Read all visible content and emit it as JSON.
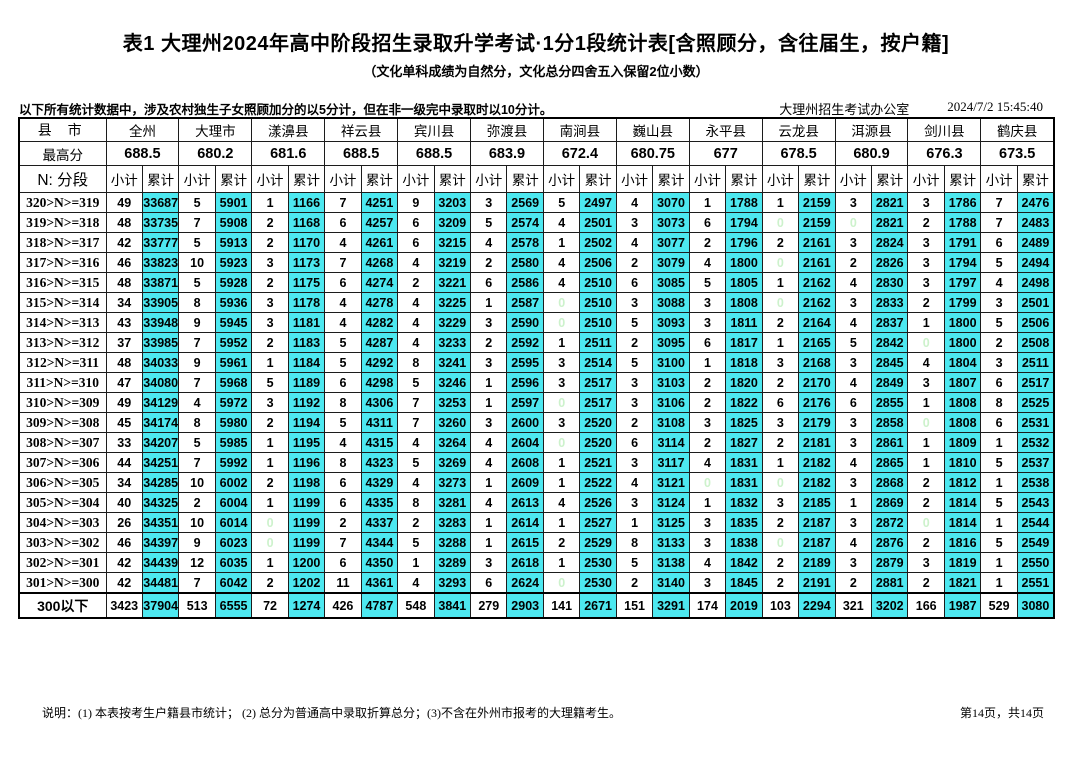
{
  "title": "表1  大理州2024年高中阶段招生录取升学考试·1分1段统计表[含照顾分，含往届生，按户籍]",
  "subtitle": "（文化单科成绩为自然分，文化总分四舍五入保留2位小数）",
  "note": "以下所有统计数据中，涉及农村独生子女照顾加分的以5分计，但在非一级完中录取时以10分计。",
  "office": "大理州招生考试办公室",
  "datetime": "2024/7/2 15:45:40",
  "footer_left": "说明：(1) 本表按考生户籍县市统计；  (2) 总分为普通高中录取折算总分；(3)不含在外州市报考的大理籍考生。",
  "footer_right": "第14页，共14页",
  "colors": {
    "highlight": "#4de8f0",
    "zero_text": "#cdf2cc"
  },
  "chart_data": {
    "type": "table",
    "corner_label": "县 市",
    "max_label": "最高分",
    "segment_label": "N: 分段",
    "subcol_labels": [
      "小计",
      "累计"
    ],
    "counties": [
      "全州",
      "大理市",
      "漾濞县",
      "祥云县",
      "宾川县",
      "弥渡县",
      "南涧县",
      "巍山县",
      "永平县",
      "云龙县",
      "洱源县",
      "剑川县",
      "鹤庆县"
    ],
    "max_scores": [
      "688.5",
      "680.2",
      "681.6",
      "688.5",
      "688.5",
      "683.9",
      "672.4",
      "680.75",
      "677",
      "678.5",
      "680.9",
      "676.3",
      "673.5"
    ],
    "rows": [
      {
        "label": "320>N>=319",
        "values": [
          49,
          33687,
          5,
          5901,
          1,
          1166,
          7,
          4251,
          9,
          3203,
          3,
          2569,
          5,
          2497,
          4,
          3070,
          1,
          1788,
          1,
          2159,
          3,
          2821,
          3,
          1786,
          7,
          2476
        ]
      },
      {
        "label": "319>N>=318",
        "values": [
          48,
          33735,
          7,
          5908,
          2,
          1168,
          6,
          4257,
          6,
          3209,
          5,
          2574,
          4,
          2501,
          3,
          3073,
          6,
          1794,
          0,
          2159,
          0,
          2821,
          2,
          1788,
          7,
          2483
        ]
      },
      {
        "label": "318>N>=317",
        "values": [
          42,
          33777,
          5,
          5913,
          2,
          1170,
          4,
          4261,
          6,
          3215,
          4,
          2578,
          1,
          2502,
          4,
          3077,
          2,
          1796,
          2,
          2161,
          3,
          2824,
          3,
          1791,
          6,
          2489
        ]
      },
      {
        "label": "317>N>=316",
        "values": [
          46,
          33823,
          10,
          5923,
          3,
          1173,
          7,
          4268,
          4,
          3219,
          2,
          2580,
          4,
          2506,
          2,
          3079,
          4,
          1800,
          0,
          2161,
          2,
          2826,
          3,
          1794,
          5,
          2494
        ]
      },
      {
        "label": "316>N>=315",
        "values": [
          48,
          33871,
          5,
          5928,
          2,
          1175,
          6,
          4274,
          2,
          3221,
          6,
          2586,
          4,
          2510,
          6,
          3085,
          5,
          1805,
          1,
          2162,
          4,
          2830,
          3,
          1797,
          4,
          2498
        ]
      },
      {
        "label": "315>N>=314",
        "values": [
          34,
          33905,
          8,
          5936,
          3,
          1178,
          4,
          4278,
          4,
          3225,
          1,
          2587,
          0,
          2510,
          3,
          3088,
          3,
          1808,
          0,
          2162,
          3,
          2833,
          2,
          1799,
          3,
          2501
        ]
      },
      {
        "label": "314>N>=313",
        "values": [
          43,
          33948,
          9,
          5945,
          3,
          1181,
          4,
          4282,
          4,
          3229,
          3,
          2590,
          0,
          2510,
          5,
          3093,
          3,
          1811,
          2,
          2164,
          4,
          2837,
          1,
          1800,
          5,
          2506
        ]
      },
      {
        "label": "313>N>=312",
        "values": [
          37,
          33985,
          7,
          5952,
          2,
          1183,
          5,
          4287,
          4,
          3233,
          2,
          2592,
          1,
          2511,
          2,
          3095,
          6,
          1817,
          1,
          2165,
          5,
          2842,
          0,
          1800,
          2,
          2508
        ]
      },
      {
        "label": "312>N>=311",
        "values": [
          48,
          34033,
          9,
          5961,
          1,
          1184,
          5,
          4292,
          8,
          3241,
          3,
          2595,
          3,
          2514,
          5,
          3100,
          1,
          1818,
          3,
          2168,
          3,
          2845,
          4,
          1804,
          3,
          2511
        ]
      },
      {
        "label": "311>N>=310",
        "values": [
          47,
          34080,
          7,
          5968,
          5,
          1189,
          6,
          4298,
          5,
          3246,
          1,
          2596,
          3,
          2517,
          3,
          3103,
          2,
          1820,
          2,
          2170,
          4,
          2849,
          3,
          1807,
          6,
          2517
        ]
      },
      {
        "label": "310>N>=309",
        "values": [
          49,
          34129,
          4,
          5972,
          3,
          1192,
          8,
          4306,
          7,
          3253,
          1,
          2597,
          0,
          2517,
          3,
          3106,
          2,
          1822,
          6,
          2176,
          6,
          2855,
          1,
          1808,
          8,
          2525
        ]
      },
      {
        "label": "309>N>=308",
        "values": [
          45,
          34174,
          8,
          5980,
          2,
          1194,
          5,
          4311,
          7,
          3260,
          3,
          2600,
          3,
          2520,
          2,
          3108,
          3,
          1825,
          3,
          2179,
          3,
          2858,
          0,
          1808,
          6,
          2531
        ]
      },
      {
        "label": "308>N>=307",
        "values": [
          33,
          34207,
          5,
          5985,
          1,
          1195,
          4,
          4315,
          4,
          3264,
          4,
          2604,
          0,
          2520,
          6,
          3114,
          2,
          1827,
          2,
          2181,
          3,
          2861,
          1,
          1809,
          1,
          2532
        ]
      },
      {
        "label": "307>N>=306",
        "values": [
          44,
          34251,
          7,
          5992,
          1,
          1196,
          8,
          4323,
          5,
          3269,
          4,
          2608,
          1,
          2521,
          3,
          3117,
          4,
          1831,
          1,
          2182,
          4,
          2865,
          1,
          1810,
          5,
          2537
        ]
      },
      {
        "label": "306>N>=305",
        "values": [
          34,
          34285,
          10,
          6002,
          2,
          1198,
          6,
          4329,
          4,
          3273,
          1,
          2609,
          1,
          2522,
          4,
          3121,
          0,
          1831,
          0,
          2182,
          3,
          2868,
          2,
          1812,
          1,
          2538
        ]
      },
      {
        "label": "305>N>=304",
        "values": [
          40,
          34325,
          2,
          6004,
          1,
          1199,
          6,
          4335,
          8,
          3281,
          4,
          2613,
          4,
          2526,
          3,
          3124,
          1,
          1832,
          3,
          2185,
          1,
          2869,
          2,
          1814,
          5,
          2543
        ]
      },
      {
        "label": "304>N>=303",
        "values": [
          26,
          34351,
          10,
          6014,
          0,
          1199,
          2,
          4337,
          2,
          3283,
          1,
          2614,
          1,
          2527,
          1,
          3125,
          3,
          1835,
          2,
          2187,
          3,
          2872,
          0,
          1814,
          1,
          2544
        ]
      },
      {
        "label": "303>N>=302",
        "values": [
          46,
          34397,
          9,
          6023,
          0,
          1199,
          7,
          4344,
          5,
          3288,
          1,
          2615,
          2,
          2529,
          8,
          3133,
          3,
          1838,
          0,
          2187,
          4,
          2876,
          2,
          1816,
          5,
          2549
        ]
      },
      {
        "label": "302>N>=301",
        "values": [
          42,
          34439,
          12,
          6035,
          1,
          1200,
          6,
          4350,
          1,
          3289,
          3,
          2618,
          1,
          2530,
          5,
          3138,
          4,
          1842,
          2,
          2189,
          3,
          2879,
          3,
          1819,
          1,
          2550
        ]
      },
      {
        "label": "301>N>=300",
        "values": [
          42,
          34481,
          7,
          6042,
          2,
          1202,
          11,
          4361,
          4,
          3293,
          6,
          2624,
          0,
          2530,
          2,
          3140,
          3,
          1845,
          2,
          2191,
          2,
          2881,
          2,
          1821,
          1,
          2551
        ]
      },
      {
        "label": "300以下",
        "values": [
          3423,
          37904,
          513,
          6555,
          72,
          1274,
          426,
          4787,
          548,
          3841,
          279,
          2903,
          141,
          2671,
          151,
          3291,
          174,
          2019,
          103,
          2294,
          321,
          3202,
          166,
          1987,
          529,
          3080
        ]
      }
    ]
  }
}
